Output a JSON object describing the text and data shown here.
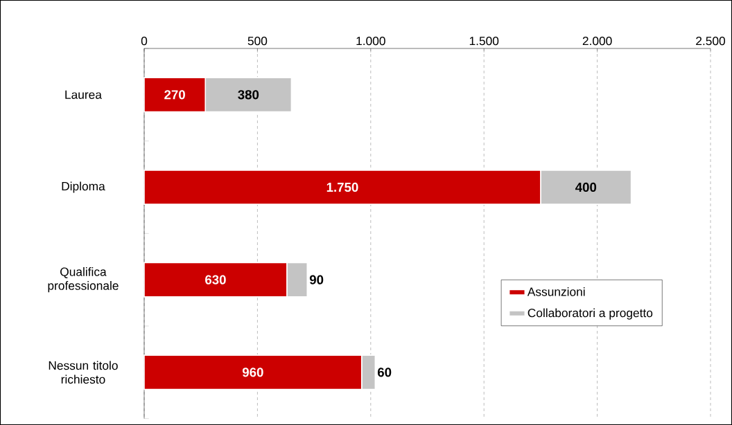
{
  "chart_data": {
    "type": "bar",
    "orientation": "horizontal",
    "stacked": true,
    "categories": [
      "Laurea",
      "Diploma",
      "Qualifica professionale",
      "Nessun titolo richiesto"
    ],
    "series": [
      {
        "name": "Assunzioni",
        "color": "#cc0000",
        "values": [
          270,
          1750,
          630,
          960
        ],
        "value_labels": [
          "270",
          "1.750",
          "630",
          "960"
        ]
      },
      {
        "name": "Collaboratori a progetto",
        "color": "#c4c4c4",
        "values": [
          380,
          400,
          90,
          60
        ],
        "value_labels": [
          "380",
          "400",
          "90",
          "60"
        ]
      }
    ],
    "xlim": [
      0,
      2500
    ],
    "xticks": [
      0,
      500,
      {
        "value": 1000,
        "label": "1.000"
      },
      {
        "value": 1500,
        "label": "1.500"
      },
      {
        "value": 2000,
        "label": "2.000"
      },
      {
        "value": 2500,
        "label": "2.500"
      }
    ],
    "grid": "x",
    "legend": "right"
  }
}
